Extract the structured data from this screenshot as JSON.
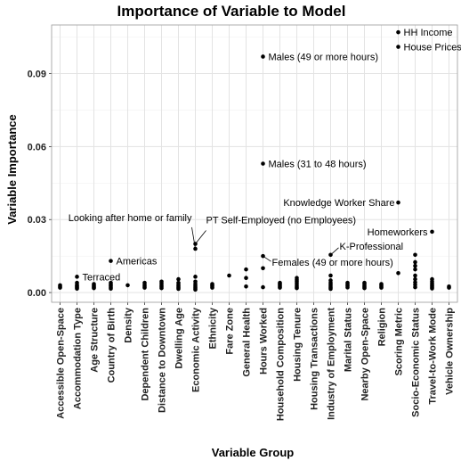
{
  "chart_data": {
    "type": "scatter",
    "title": "Importance of Variable to Model",
    "xlabel": "Variable Group",
    "ylabel": "Variable Importance",
    "ylim": [
      -0.004,
      0.11
    ],
    "yticks": [
      0.0,
      0.03,
      0.06,
      0.09
    ],
    "ytick_labels": [
      "0.00",
      "0.03",
      "0.06",
      "0.09"
    ],
    "grid": true,
    "categories": [
      "Accessible Open-Space",
      "Accommodation Type",
      "Age Structure",
      "Country of Birth",
      "Density",
      "Dependent Children",
      "Distance to Downtown",
      "Dwelling Age",
      "Economic Activity",
      "Ethnicity",
      "Fare Zone",
      "General Health",
      "Hours Worked",
      "Household Composition",
      "Housing Tenure",
      "Housing Transactions",
      "Industry of Employment",
      "Marital Status",
      "Nearby Open-Space",
      "Religion",
      "Scoring Metric",
      "Socio-Economic Status",
      "Travel-to-Work Mode",
      "Vehicle Ownership"
    ],
    "points": [
      {
        "category": "Accessible Open-Space",
        "values": [
          0.003,
          0.0025,
          0.002
        ]
      },
      {
        "category": "Accommodation Type",
        "values": [
          0.0065,
          0.004,
          0.0032,
          0.0028,
          0.0024,
          0.002,
          0.0016
        ]
      },
      {
        "category": "Age Structure",
        "values": [
          0.0035,
          0.003,
          0.0026,
          0.0022,
          0.0018
        ]
      },
      {
        "category": "Country of Birth",
        "values": [
          0.013,
          0.004,
          0.0033,
          0.0028,
          0.0022,
          0.0016
        ]
      },
      {
        "category": "Density",
        "values": [
          0.003
        ]
      },
      {
        "category": "Dependent Children",
        "values": [
          0.004,
          0.0032,
          0.0026,
          0.002
        ]
      },
      {
        "category": "Distance to Downtown",
        "values": [
          0.0045,
          0.0038,
          0.003,
          0.0024,
          0.0018
        ]
      },
      {
        "category": "Dwelling Age",
        "values": [
          0.0055,
          0.004,
          0.0032,
          0.0026,
          0.002,
          0.0015
        ]
      },
      {
        "category": "Economic Activity",
        "values": [
          0.02,
          0.018,
          0.0065,
          0.0045,
          0.0035,
          0.0028,
          0.0022,
          0.0016,
          0.0012
        ]
      },
      {
        "category": "Ethnicity",
        "values": [
          0.0035,
          0.003,
          0.0026,
          0.002
        ]
      },
      {
        "category": "Fare Zone",
        "values": [
          0.007
        ]
      },
      {
        "category": "General Health",
        "values": [
          0.0095,
          0.006,
          0.0025
        ]
      },
      {
        "category": "Hours Worked",
        "values": [
          0.097,
          0.053,
          0.015,
          0.01,
          0.0022
        ]
      },
      {
        "category": "Household Composition",
        "values": [
          0.004,
          0.0035,
          0.003,
          0.0025,
          0.002
        ]
      },
      {
        "category": "Housing Tenure",
        "values": [
          0.006,
          0.0052,
          0.0045,
          0.0038,
          0.003,
          0.0023,
          0.0018
        ]
      },
      {
        "category": "Housing Transactions",
        "values": []
      },
      {
        "category": "Industry of Employment",
        "values": [
          0.0155,
          0.007,
          0.005,
          0.004,
          0.0033,
          0.0026,
          0.002,
          0.0015
        ]
      },
      {
        "category": "Marital Status",
        "values": [
          0.004,
          0.0033,
          0.0027,
          0.0021
        ]
      },
      {
        "category": "Nearby Open-Space",
        "values": [
          0.004,
          0.0034,
          0.0028,
          0.0023,
          0.0018
        ]
      },
      {
        "category": "Religion",
        "values": [
          0.0035,
          0.003,
          0.0025,
          0.002
        ]
      },
      {
        "category": "Scoring Metric",
        "values": [
          0.107,
          0.101,
          0.037,
          0.008
        ]
      },
      {
        "category": "Socio-Economic Status",
        "values": [
          0.0155,
          0.0125,
          0.011,
          0.0095,
          0.007,
          0.0055,
          0.0042,
          0.0032,
          0.0022
        ]
      },
      {
        "category": "Travel-to-Work Mode",
        "values": [
          0.025,
          0.0055,
          0.0045,
          0.0038,
          0.0032,
          0.0027,
          0.0022,
          0.0017
        ]
      },
      {
        "category": "Vehicle Ownership",
        "values": [
          0.0025,
          0.002
        ]
      }
    ],
    "annotations": [
      {
        "text": "HH Income",
        "category": "Scoring Metric",
        "value": 0.107
      },
      {
        "text": "House Prices",
        "category": "Scoring Metric",
        "value": 0.101
      },
      {
        "text": "Males (49 or more hours)",
        "category": "Hours Worked",
        "value": 0.097
      },
      {
        "text": "Males (31 to 48 hours)",
        "category": "Hours Worked",
        "value": 0.053
      },
      {
        "text": "Knowledge Worker Share",
        "category": "Scoring Metric",
        "value": 0.037
      },
      {
        "text": "Homeworkers",
        "category": "Travel-to-Work Mode",
        "value": 0.025
      },
      {
        "text": "Looking after home or family",
        "category": "Economic Activity",
        "value": 0.018
      },
      {
        "text": "PT Self-Employed (no Employees)",
        "category": "Economic Activity",
        "value": 0.02
      },
      {
        "text": "K-Professional",
        "category": "Industry of Employment",
        "value": 0.0155
      },
      {
        "text": "Females (49 or more hours)",
        "category": "Hours Worked",
        "value": 0.015
      },
      {
        "text": "Americas",
        "category": "Country of Birth",
        "value": 0.013
      },
      {
        "text": "Terraced",
        "category": "Accommodation Type",
        "value": 0.0065
      }
    ]
  }
}
